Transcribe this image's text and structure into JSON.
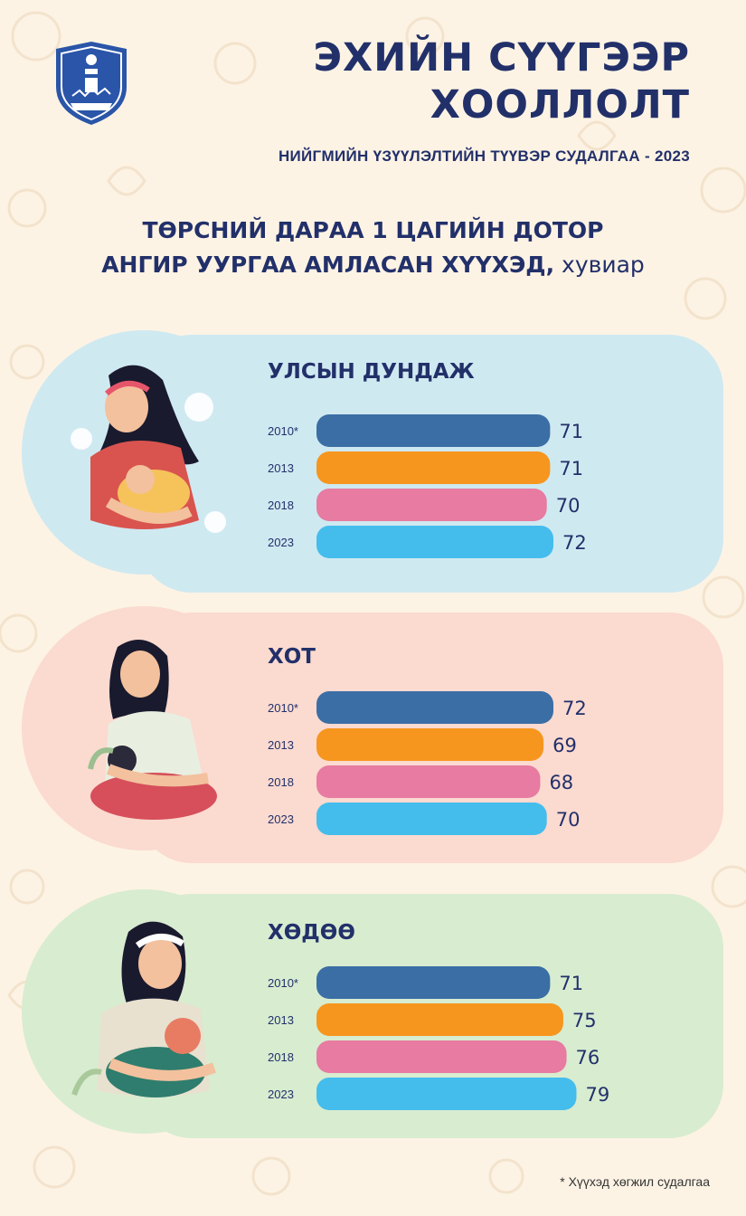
{
  "header": {
    "title_line1": "ЭХИЙН СҮҮГЭЭР",
    "title_line2": "ХООЛЛОЛТ",
    "subtitle": "НИЙГМИЙН ҮЗҮҮЛЭЛТИЙН ТҮҮВЭР СУДАЛГАА - 2023",
    "logo_icon": "soyombo-emblem-icon"
  },
  "headline": {
    "line1": "ТӨРСНИЙ ДАРАА 1 ЦАГИЙН ДОТОР",
    "line2": "АНГИР УУРГАА АМЛАСАН ХҮҮХЭД,",
    "unit": " хувиар"
  },
  "colors": {
    "2010*": "#3b6ea5",
    "2013": "#f6961e",
    "2018": "#e77ba1",
    "2023": "#44bdec",
    "panel_blue": "#cfe9f1",
    "panel_pink": "#fbdad0",
    "panel_green": "#d8ecd0",
    "text": "#22306a"
  },
  "chart_data": [
    {
      "type": "bar",
      "title": "УЛСЫН ДУНДАЖ",
      "categories": [
        "2010*",
        "2013",
        "2018",
        "2023"
      ],
      "values": [
        71,
        71,
        70,
        72
      ]
    },
    {
      "type": "bar",
      "title": "ХОТ",
      "categories": [
        "2010*",
        "2013",
        "2018",
        "2023"
      ],
      "values": [
        72,
        69,
        68,
        70
      ]
    },
    {
      "type": "bar",
      "title": "ХӨДӨӨ",
      "categories": [
        "2010*",
        "2013",
        "2018",
        "2023"
      ],
      "values": [
        71,
        75,
        76,
        79
      ]
    }
  ],
  "footnote": "* Хүүхэд хөгжил судалгаа"
}
